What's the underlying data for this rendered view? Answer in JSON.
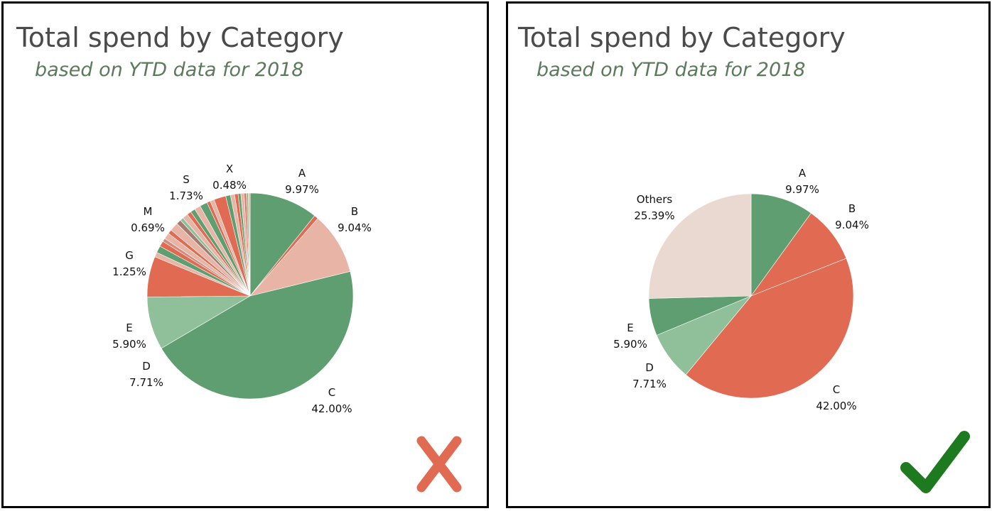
{
  "panels": [
    {
      "title": "Total spend by Category",
      "subtitle": "based on YTD data for 2018",
      "verdict": "cross-icon"
    },
    {
      "title": "Total spend by Category",
      "subtitle": "based on YTD data for 2018",
      "verdict": "checkmark-icon"
    }
  ],
  "colors": {
    "green": "#5e9e70",
    "salmon": "#e8b4a6",
    "red": "#e06a52",
    "light_green": "#8fc09a",
    "pale": "#e9d9d0",
    "x_mark": "#e06a52",
    "check_mark": "#1e7a1e"
  },
  "chart_data": [
    {
      "type": "pie",
      "title": "Total spend by Category",
      "subtitle": "based on YTD data for 2018",
      "labeled_slices": [
        {
          "name": "A",
          "value": 9.97,
          "label": "9.97%"
        },
        {
          "name": "B",
          "value": 9.04,
          "label": "9.04%"
        },
        {
          "name": "C",
          "value": 42.0,
          "label": "42.00%"
        },
        {
          "name": "D",
          "value": 7.71,
          "label": "7.71%"
        },
        {
          "name": "E",
          "value": 5.9,
          "label": "5.90%"
        },
        {
          "name": "G",
          "value": 1.25,
          "label": "1.25%"
        },
        {
          "name": "M",
          "value": 0.69,
          "label": "0.69%"
        },
        {
          "name": "S",
          "value": 1.73,
          "label": "1.73%"
        },
        {
          "name": "X",
          "value": 0.48,
          "label": "0.48%"
        }
      ],
      "slice_order_clockwise": [
        9.97,
        0.6,
        9.04,
        42.0,
        7.71,
        5.9,
        0.7,
        1.0,
        0.8,
        0.5,
        0.9,
        0.6,
        1.25,
        0.7,
        0.5,
        0.8,
        0.6,
        0.69,
        0.9,
        1.1,
        0.5,
        0.6,
        1.73,
        0.7,
        0.6,
        0.5,
        0.4,
        0.48,
        0.3,
        0.3,
        0.26
      ],
      "slice_colors": [
        "#5e9e70",
        "#e06a52",
        "#e8b4a6",
        "#5e9e70",
        "#8fc09a",
        "#e06a52",
        "#e8b4a6",
        "#5e9e70",
        "#e06a52",
        "#d88a7a",
        "#e8b4a6",
        "#e06a52",
        "#e8b4a6",
        "#a67a70",
        "#8fc09a",
        "#e8b4a6",
        "#e06a52",
        "#5e9e70",
        "#e8b4a6",
        "#5e9e70",
        "#e06a52",
        "#e8b4a6",
        "#e06a52",
        "#5e9e70",
        "#e8b4a6",
        "#e06a52",
        "#5e9e70",
        "#e8b4a6",
        "#e06a52",
        "#8fc09a",
        "#e8b4a6"
      ]
    },
    {
      "type": "pie",
      "title": "Total spend by Category",
      "subtitle": "based on YTD data for 2018",
      "slices": [
        {
          "name": "A",
          "value": 9.97,
          "label": "9.97%",
          "color": "#5e9e70"
        },
        {
          "name": "B",
          "value": 9.04,
          "label": "9.04%",
          "color": "#e06a52"
        },
        {
          "name": "C",
          "value": 42.0,
          "label": "42.00%",
          "color": "#e06a52"
        },
        {
          "name": "D",
          "value": 7.71,
          "label": "7.71%",
          "color": "#8fc09a"
        },
        {
          "name": "E",
          "value": 5.9,
          "label": "5.90%",
          "color": "#5e9e70"
        },
        {
          "name": "Others",
          "value": 25.39,
          "label": "25.39%",
          "color": "#e9d9d0"
        }
      ]
    }
  ]
}
